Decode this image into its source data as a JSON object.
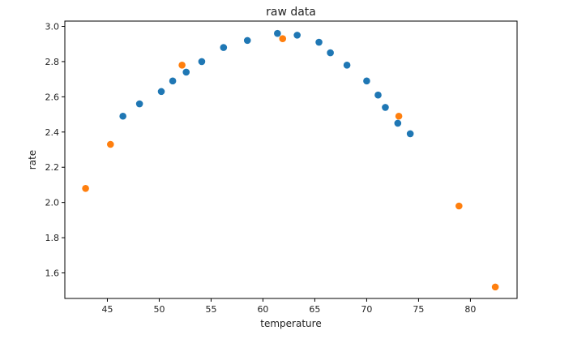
{
  "chart_data": {
    "type": "scatter",
    "title": "raw data",
    "xlabel": "temperature",
    "ylabel": "rate",
    "xlim": [
      40.9,
      84.5
    ],
    "ylim": [
      1.455,
      3.03
    ],
    "xticks": [
      45,
      50,
      55,
      60,
      65,
      70,
      75,
      80
    ],
    "yticks": [
      1.6,
      1.8,
      2.0,
      2.2,
      2.4,
      2.6,
      2.8,
      3.0
    ],
    "ytick_labels": [
      "1.6",
      "1.8",
      "2.0",
      "2.2",
      "2.4",
      "2.6",
      "2.8",
      "3.0"
    ],
    "grid": false,
    "series": [
      {
        "color": "#1f77b4",
        "points": [
          [
            46.5,
            2.49
          ],
          [
            48.1,
            2.56
          ],
          [
            50.2,
            2.63
          ],
          [
            51.3,
            2.69
          ],
          [
            52.6,
            2.74
          ],
          [
            54.1,
            2.8
          ],
          [
            56.2,
            2.88
          ],
          [
            58.5,
            2.92
          ],
          [
            61.4,
            2.96
          ],
          [
            63.3,
            2.95
          ],
          [
            65.4,
            2.91
          ],
          [
            66.5,
            2.85
          ],
          [
            68.1,
            2.78
          ],
          [
            70.0,
            2.69
          ],
          [
            71.1,
            2.61
          ],
          [
            71.8,
            2.54
          ],
          [
            73.0,
            2.45
          ],
          [
            74.2,
            2.39
          ]
        ]
      },
      {
        "color": "#ff7f0e",
        "points": [
          [
            42.9,
            2.08
          ],
          [
            45.3,
            2.33
          ],
          [
            52.2,
            2.78
          ],
          [
            61.9,
            2.93
          ],
          [
            73.1,
            2.49
          ],
          [
            78.9,
            1.98
          ],
          [
            82.4,
            1.52
          ]
        ]
      }
    ]
  }
}
